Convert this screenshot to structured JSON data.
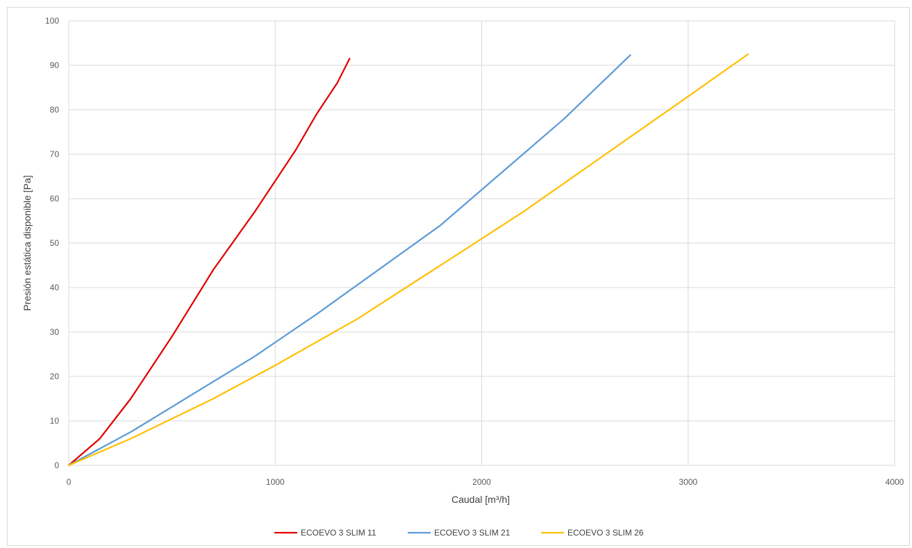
{
  "chart_data": {
    "type": "line",
    "title": "",
    "xlabel": "Caudal [m³/h]",
    "ylabel": "Presión estática disponible [Pa]",
    "xlim": [
      0,
      4000
    ],
    "ylim": [
      0,
      100
    ],
    "xticks": [
      "0",
      "1000",
      "2000",
      "3000",
      "4000"
    ],
    "yticks": [
      "0",
      "10",
      "20",
      "30",
      "40",
      "50",
      "60",
      "70",
      "80",
      "90",
      "100"
    ],
    "grid": true,
    "legend_position": "bottom",
    "series": [
      {
        "name": "ECOEVO 3 SLIM 11",
        "color": "#e00000",
        "x": [
          0,
          150,
          300,
          500,
          700,
          900,
          1000,
          1100,
          1200,
          1300,
          1360
        ],
        "y": [
          0,
          6,
          15,
          29,
          44,
          57,
          64,
          71,
          79,
          86,
          91.5
        ]
      },
      {
        "name": "ECOEVO 3 SLIM 21",
        "color": "#5b9bd5",
        "x": [
          0,
          300,
          600,
          900,
          1200,
          1500,
          1800,
          2100,
          2400,
          2720
        ],
        "y": [
          0,
          7.5,
          16,
          24.5,
          34,
          44,
          54,
          66,
          78,
          92.3
        ]
      },
      {
        "name": "ECOEVO 3 SLIM 26",
        "color": "#ffc000",
        "x": [
          0,
          300,
          700,
          1000,
          1400,
          1800,
          2200,
          2600,
          3000,
          3290
        ],
        "y": [
          0,
          6,
          15,
          22.5,
          33,
          45,
          57,
          70,
          83,
          92.5
        ]
      }
    ]
  }
}
